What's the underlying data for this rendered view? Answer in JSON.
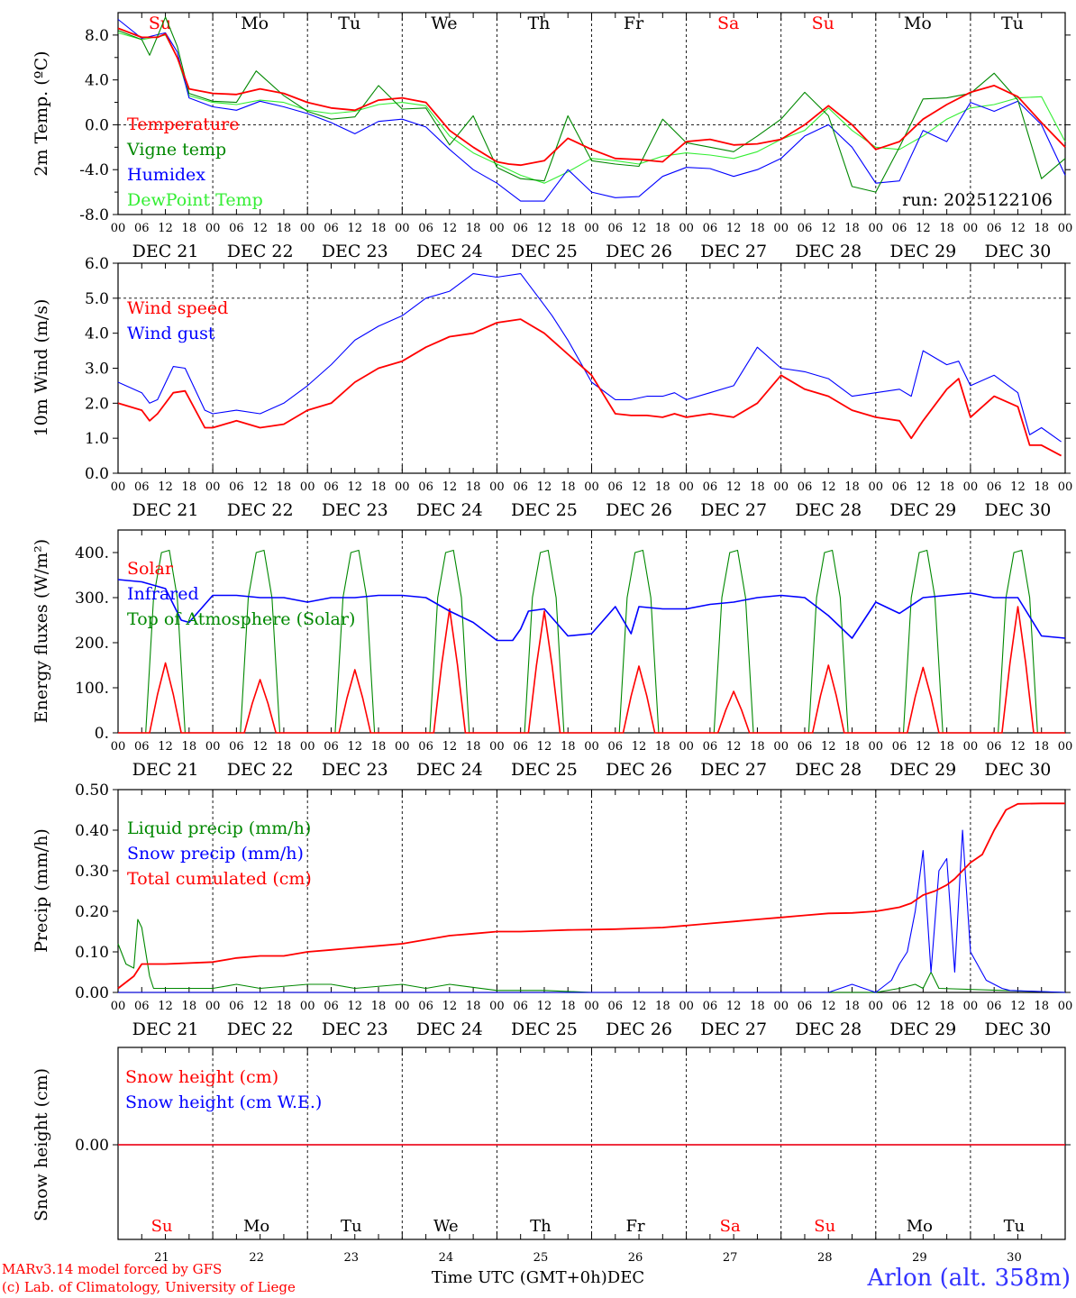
{
  "colors": {
    "red": "#ff0000",
    "darkgreen": "#008800",
    "blue": "#0000ff",
    "lightgreen": "#33ee33",
    "black": "#000000",
    "brandblue": "#3333ff"
  },
  "day_names": [
    "Su",
    "Mo",
    "Tu",
    "We",
    "Th",
    "Fr",
    "Sa",
    "Su",
    "Mo",
    "Tu"
  ],
  "weekend_days": [
    0,
    6,
    7
  ],
  "day_dates": [
    "DEC 21",
    "DEC 22",
    "DEC 23",
    "DEC 24",
    "DEC 25",
    "DEC 26",
    "DEC 27",
    "DEC 28",
    "DEC 29",
    "DEC 30"
  ],
  "day_numbers": [
    "21",
    "22",
    "23",
    "24",
    "25",
    "26",
    "27",
    "28",
    "29",
    "30"
  ],
  "hour_ticks": [
    "00",
    "06",
    "12",
    "18"
  ],
  "hour_tick_end": "00",
  "run_label": "run: 2025122106",
  "footer": {
    "model": "MARv3.14 model forced by GFS",
    "lab": "(c) Lab. of Climatology, University of Liege",
    "time_axis": "Time UTC (GMT+0h)",
    "month": "DEC",
    "location": "Arlon (alt. 358m)"
  },
  "chart_data": [
    {
      "type": "line",
      "title": "",
      "xlabel": "",
      "ylabel": "2m Temp. (ºC)",
      "x_unit": "hours since 2025-12-21 00 UTC",
      "xlim": [
        0,
        240
      ],
      "ylim": [
        -8,
        10
      ],
      "yticks": [
        "8.0",
        "4.0",
        "0.0",
        "-4.0",
        "-8.0"
      ],
      "ytick_values": [
        8,
        4,
        0,
        -4,
        -8
      ],
      "ref_line": 0,
      "series": [
        {
          "name": "Temperature",
          "color": "red",
          "x": [
            0,
            6,
            10,
            12,
            15,
            18,
            24,
            30,
            36,
            42,
            48,
            54,
            60,
            66,
            72,
            78,
            84,
            90,
            96,
            99,
            102,
            108,
            114,
            120,
            126,
            132,
            138,
            144,
            150,
            156,
            162,
            168,
            174,
            180,
            186,
            192,
            198,
            204,
            210,
            216,
            222,
            228,
            234,
            240
          ],
          "y": [
            8.6,
            7.8,
            7.8,
            8.1,
            6,
            3.2,
            2.8,
            2.7,
            3.2,
            2.8,
            2,
            1.5,
            1.3,
            2.2,
            2.4,
            2,
            -0.5,
            -2,
            -3.3,
            -3.5,
            -3.6,
            -3.2,
            -1.2,
            -2.2,
            -3,
            -3.1,
            -3.3,
            -1.5,
            -1.3,
            -1.8,
            -1.7,
            -1.3,
            0,
            1.7,
            0,
            -2.2,
            -1.5,
            0.5,
            1.8,
            2.9,
            3.5,
            2.5,
            0.2,
            -2
          ]
        },
        {
          "name": "Vigne temp",
          "color": "darkgreen",
          "x": [
            0,
            6,
            8,
            12,
            15,
            18,
            24,
            30,
            35,
            42,
            48,
            54,
            60,
            66,
            72,
            78,
            84,
            90,
            96,
            102,
            108,
            114,
            120,
            126,
            132,
            138,
            144,
            150,
            156,
            162,
            168,
            174,
            180,
            186,
            192,
            198,
            204,
            210,
            216,
            222,
            228,
            234,
            240
          ],
          "y": [
            8.4,
            7.6,
            6.2,
            9.6,
            7,
            2.8,
            2.1,
            2,
            4.8,
            2.6,
            1.2,
            0.5,
            0.7,
            3.5,
            1.4,
            1.5,
            -1.8,
            0.8,
            -3.8,
            -4.8,
            -5,
            0.8,
            -3.2,
            -3.5,
            -3.7,
            0.5,
            -1.6,
            -2,
            -2.4,
            -1,
            0.5,
            2.9,
            0.8,
            -5.5,
            -6,
            -2,
            2.3,
            2.4,
            2.8,
            4.6,
            2.2,
            -4.8,
            -3
          ]
        },
        {
          "name": "Humidex",
          "color": "blue",
          "x": [
            0,
            6,
            12,
            15,
            18,
            24,
            30,
            36,
            42,
            48,
            54,
            60,
            66,
            72,
            78,
            84,
            90,
            96,
            102,
            108,
            114,
            120,
            126,
            132,
            138,
            144,
            150,
            156,
            162,
            168,
            174,
            180,
            186,
            192,
            198,
            204,
            210,
            216,
            222,
            228,
            234,
            240
          ],
          "y": [
            9.4,
            7.7,
            8.2,
            6.5,
            2.4,
            1.6,
            1.3,
            2.1,
            1.6,
            1,
            0.2,
            -0.8,
            0.3,
            0.5,
            -0.2,
            -2.2,
            -4,
            -5.2,
            -6.8,
            -6.8,
            -4,
            -6,
            -6.5,
            -6.4,
            -4.6,
            -3.8,
            -3.9,
            -4.6,
            -4,
            -3,
            -1,
            0,
            -2,
            -5.2,
            -5,
            -0.5,
            -1.5,
            2,
            1.2,
            2.1,
            0,
            -4.5
          ]
        },
        {
          "name": "DewPoint Temp",
          "color": "lightgreen",
          "x": [
            0,
            6,
            12,
            15,
            18,
            24,
            30,
            36,
            42,
            48,
            54,
            60,
            66,
            72,
            78,
            84,
            90,
            96,
            102,
            108,
            114,
            120,
            126,
            132,
            138,
            144,
            150,
            156,
            162,
            168,
            174,
            180,
            186,
            192,
            198,
            204,
            210,
            216,
            222,
            228,
            234,
            240
          ],
          "y": [
            8.2,
            7.6,
            8,
            6,
            2.6,
            2,
            1.8,
            2.2,
            2,
            1.3,
            1,
            1.2,
            1.8,
            2,
            1.7,
            -1,
            -2.5,
            -3.5,
            -4.5,
            -5.2,
            -4.2,
            -3,
            -3.2,
            -3.5,
            -2.8,
            -2.5,
            -2.7,
            -3,
            -2.4,
            -1.3,
            -0.5,
            1.5,
            -0.5,
            -2,
            -2.2,
            -1,
            0.5,
            1.5,
            1.8,
            2.4,
            2.5,
            -1.5
          ]
        }
      ],
      "legend": [
        "Temperature",
        "Vigne temp",
        "Humidex",
        "DewPoint Temp"
      ]
    },
    {
      "type": "line",
      "title": "",
      "xlabel": "",
      "ylabel": "10m Wind (m/s)",
      "xlim": [
        0,
        240
      ],
      "ylim": [
        0,
        6
      ],
      "yticks": [
        "6.0",
        "5.0",
        "4.0",
        "3.0",
        "2.0",
        "1.0",
        "0.0"
      ],
      "ytick_values": [
        6,
        5,
        4,
        3,
        2,
        1,
        0
      ],
      "ref_line": 5,
      "series": [
        {
          "name": "Wind speed",
          "color": "red",
          "x": [
            0,
            6,
            8,
            10,
            14,
            17,
            22,
            24,
            30,
            36,
            42,
            48,
            54,
            60,
            66,
            72,
            78,
            84,
            90,
            96,
            102,
            108,
            110,
            114,
            120,
            126,
            130,
            134,
            138,
            141,
            144,
            150,
            156,
            162,
            168,
            174,
            180,
            186,
            192,
            198,
            201,
            204,
            210,
            213,
            216,
            222,
            228,
            231,
            234,
            239
          ],
          "y": [
            2,
            1.8,
            1.5,
            1.7,
            2.3,
            2.35,
            1.3,
            1.3,
            1.5,
            1.3,
            1.4,
            1.8,
            2,
            2.6,
            3,
            3.2,
            3.6,
            3.9,
            4,
            4.3,
            4.4,
            4,
            3.8,
            3.4,
            2.8,
            1.7,
            1.65,
            1.65,
            1.6,
            1.7,
            1.6,
            1.7,
            1.6,
            2,
            2.8,
            2.4,
            2.2,
            1.8,
            1.6,
            1.5,
            1,
            1.5,
            2.4,
            2.7,
            1.6,
            2.2,
            1.9,
            0.8,
            0.8,
            0.5
          ]
        },
        {
          "name": "Wind gust",
          "color": "blue",
          "x": [
            0,
            6,
            8,
            10,
            14,
            17,
            22,
            24,
            30,
            36,
            42,
            48,
            54,
            60,
            66,
            72,
            78,
            84,
            90,
            96,
            102,
            108,
            110,
            114,
            120,
            126,
            130,
            134,
            138,
            141,
            144,
            150,
            156,
            162,
            168,
            174,
            180,
            186,
            192,
            198,
            201,
            204,
            210,
            213,
            216,
            222,
            228,
            231,
            234,
            239
          ],
          "y": [
            2.6,
            2.3,
            2,
            2.1,
            3.05,
            3,
            1.8,
            1.7,
            1.8,
            1.7,
            2,
            2.5,
            3.1,
            3.8,
            4.2,
            4.5,
            5,
            5.2,
            5.7,
            5.6,
            5.7,
            4.8,
            4.5,
            3.8,
            2.6,
            2.1,
            2.1,
            2.2,
            2.2,
            2.3,
            2.1,
            2.3,
            2.5,
            3.6,
            3,
            2.9,
            2.7,
            2.2,
            2.3,
            2.4,
            2.2,
            3.5,
            3.1,
            3.2,
            2.5,
            2.8,
            2.3,
            1.1,
            1.3,
            0.9
          ]
        }
      ],
      "legend": [
        "Wind speed",
        "Wind gust"
      ]
    },
    {
      "type": "line",
      "title": "",
      "xlabel": "",
      "ylabel": "Energy fluxes (W/m²)",
      "xlim": [
        0,
        240
      ],
      "ylim": [
        0,
        450
      ],
      "yticks": [
        "400.",
        "300.",
        "200.",
        "100.",
        "0."
      ],
      "ytick_values": [
        400,
        300,
        200,
        100,
        0
      ],
      "solar_peaks": [
        155,
        118,
        140,
        275,
        270,
        148,
        92,
        150,
        145,
        280
      ],
      "toa_peak": 405,
      "series": [
        {
          "name": "Solar",
          "color": "red",
          "note": "daily bell, zero at night; peak per day in solar_peaks"
        },
        {
          "name": "Infrared",
          "color": "blue",
          "x": [
            0,
            6,
            12,
            16,
            18,
            24,
            30,
            36,
            42,
            48,
            54,
            60,
            66,
            72,
            78,
            84,
            90,
            96,
            100,
            102,
            104,
            108,
            114,
            120,
            126,
            130,
            132,
            138,
            144,
            150,
            156,
            162,
            168,
            174,
            180,
            186,
            192,
            198,
            204,
            210,
            216,
            222,
            228,
            234,
            240
          ],
          "y": [
            340,
            335,
            320,
            250,
            245,
            305,
            305,
            300,
            300,
            290,
            300,
            300,
            305,
            305,
            300,
            270,
            245,
            205,
            205,
            230,
            270,
            275,
            215,
            220,
            280,
            220,
            280,
            275,
            275,
            285,
            290,
            300,
            305,
            300,
            260,
            210,
            290,
            265,
            300,
            305,
            310,
            300,
            300,
            215,
            210
          ]
        },
        {
          "name": "Top of Atmosphere (Solar)",
          "color": "darkgreen",
          "note": "daily plateau from ~08h to ~16h UTC, peak toa_peak"
        }
      ],
      "legend": [
        "Solar",
        "Infrared",
        "Top of Atmosphere (Solar)"
      ]
    },
    {
      "type": "line",
      "title": "",
      "xlabel": "",
      "ylabel": "Precip (mm/h)",
      "xlim": [
        0,
        240
      ],
      "ylim": [
        0,
        0.5
      ],
      "yticks": [
        "0.50",
        "0.40",
        "0.30",
        "0.20",
        "0.10",
        "0.00"
      ],
      "ytick_values": [
        0.5,
        0.4,
        0.3,
        0.2,
        0.1,
        0
      ],
      "series": [
        {
          "name": "Liquid precip (mm/h)",
          "color": "darkgreen",
          "x": [
            0,
            2,
            4,
            5,
            6,
            8,
            9,
            12,
            24,
            30,
            36,
            48,
            54,
            60,
            72,
            78,
            84,
            96,
            108,
            120,
            144,
            168,
            192,
            198,
            202,
            204,
            206,
            208,
            240
          ],
          "y": [
            0.12,
            0.07,
            0.06,
            0.18,
            0.16,
            0.04,
            0.01,
            0.01,
            0.01,
            0.02,
            0.01,
            0.02,
            0.02,
            0.01,
            0.02,
            0.01,
            0.02,
            0.005,
            0.005,
            0,
            0,
            0,
            0,
            0.01,
            0.02,
            0.01,
            0.05,
            0.01,
            0
          ]
        },
        {
          "name": "Snow precip (mm/h)",
          "color": "blue",
          "x": [
            0,
            180,
            183,
            186,
            192,
            196,
            198,
            200,
            202,
            204,
            206,
            208,
            210,
            212,
            214,
            216,
            220,
            224,
            226,
            240
          ],
          "y": [
            0,
            0,
            0.01,
            0.02,
            0,
            0.03,
            0.07,
            0.1,
            0.2,
            0.35,
            0.05,
            0.3,
            0.33,
            0.05,
            0.4,
            0.1,
            0.03,
            0.01,
            0.005,
            0
          ]
        },
        {
          "name": "Total cumulated (cm)",
          "color": "red",
          "x": [
            0,
            4,
            6,
            12,
            24,
            30,
            36,
            42,
            48,
            54,
            60,
            66,
            72,
            84,
            90,
            96,
            102,
            108,
            114,
            120,
            126,
            132,
            138,
            144,
            150,
            156,
            162,
            168,
            174,
            180,
            186,
            192,
            195,
            198,
            201,
            204,
            207,
            210,
            212,
            214,
            216,
            219,
            222,
            225,
            228,
            234,
            240
          ],
          "y": [
            0.01,
            0.04,
            0.07,
            0.07,
            0.075,
            0.085,
            0.09,
            0.09,
            0.1,
            0.105,
            0.11,
            0.115,
            0.12,
            0.14,
            0.145,
            0.15,
            0.15,
            0.152,
            0.154,
            0.155,
            0.156,
            0.158,
            0.16,
            0.165,
            0.17,
            0.175,
            0.18,
            0.185,
            0.19,
            0.195,
            0.196,
            0.2,
            0.205,
            0.21,
            0.22,
            0.24,
            0.25,
            0.265,
            0.28,
            0.3,
            0.32,
            0.34,
            0.4,
            0.45,
            0.465,
            0.466,
            0.466
          ]
        }
      ],
      "legend": [
        "Liquid precip (mm/h)",
        "Snow precip (mm/h)",
        "Total cumulated (cm)"
      ]
    },
    {
      "type": "line",
      "title": "",
      "xlabel": "",
      "ylabel": "Snow height (cm)",
      "xlim": [
        0,
        240
      ],
      "yticks": [
        "0.00"
      ],
      "ytick_values": [
        0
      ],
      "series": [
        {
          "name": "Snow height (cm)",
          "color": "red",
          "x": [
            0,
            240
          ],
          "y": [
            0,
            0
          ]
        },
        {
          "name": "Snow height (cm W.E.)",
          "color": "blue",
          "x": [
            0,
            240
          ],
          "y": [
            0,
            0
          ]
        }
      ],
      "legend": [
        "Snow height (cm)",
        "Snow height (cm W.E.)"
      ]
    }
  ]
}
